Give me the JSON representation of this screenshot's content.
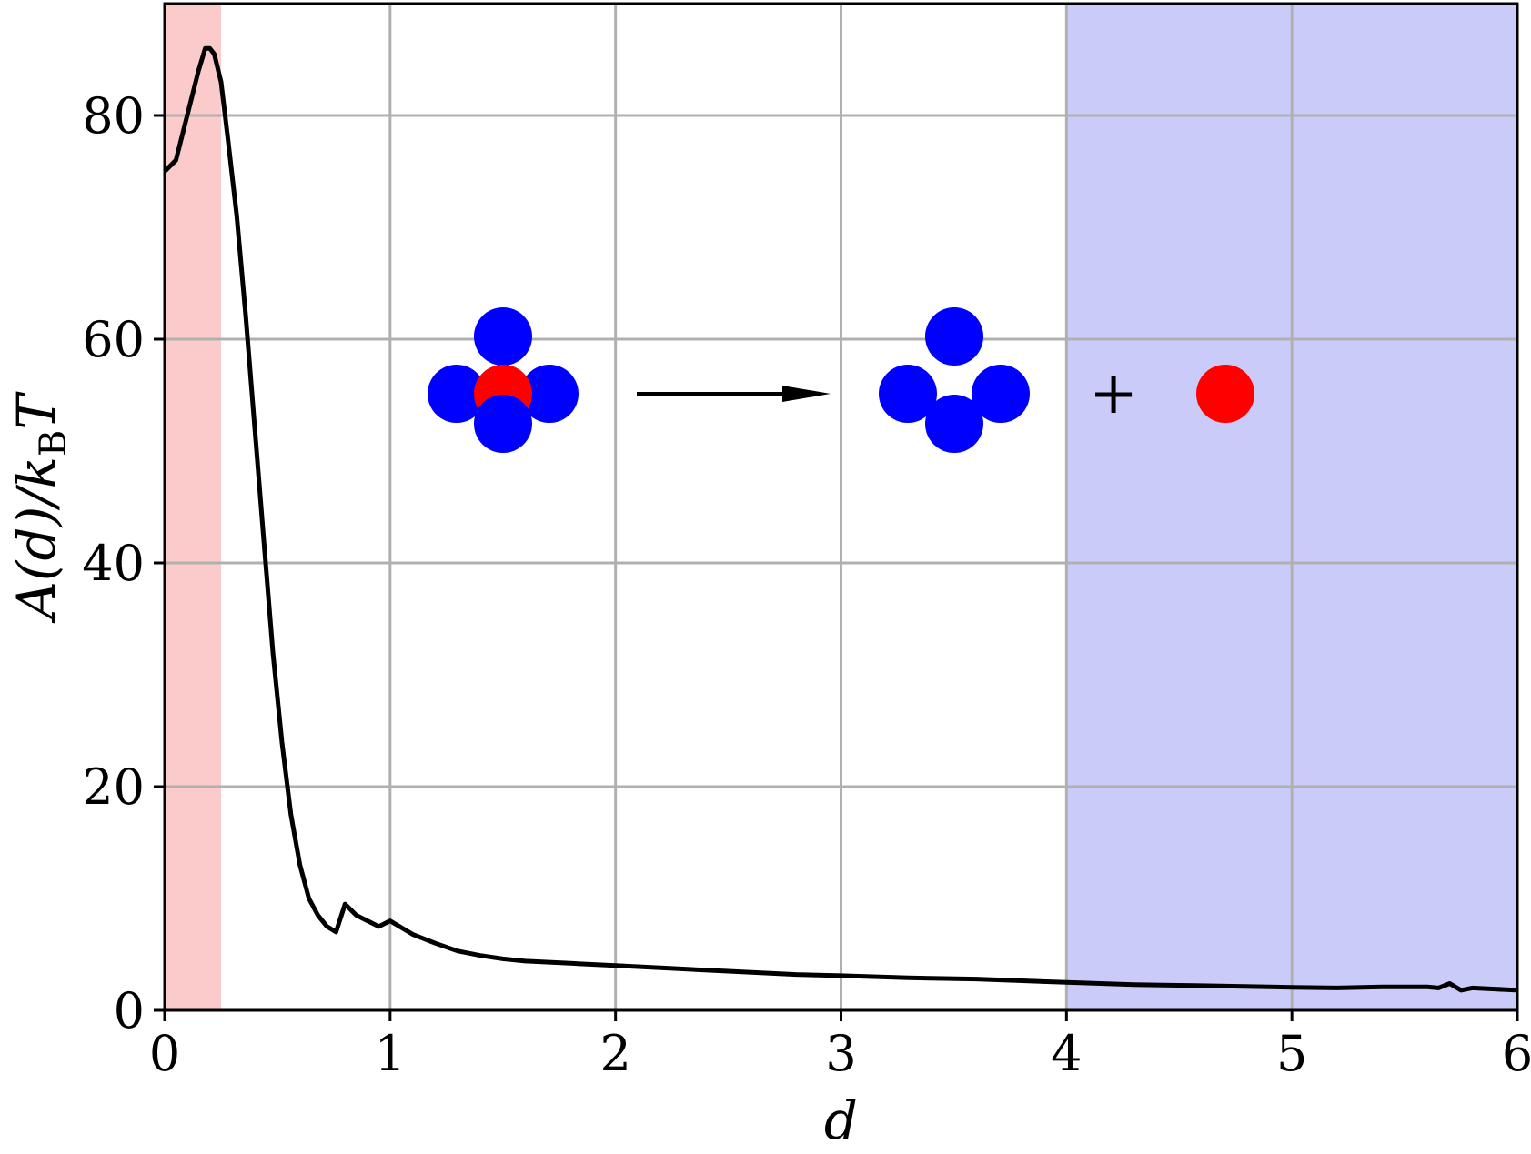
{
  "chart_data": {
    "type": "line",
    "xlabel": "d",
    "ylabel": "A(d)/kBT",
    "xlim": [
      0,
      6
    ],
    "ylim": [
      0,
      90
    ],
    "grid": true,
    "xticks": [
      "0",
      "1",
      "2",
      "3",
      "4",
      "5",
      "6"
    ],
    "yticks": [
      "0",
      "20",
      "40",
      "60",
      "80"
    ],
    "shaded_regions": [
      {
        "x_start": 0,
        "x_end": 0.25,
        "color": "#fbcaca"
      },
      {
        "x_start": 4,
        "x_end": 6,
        "color": "#cbcbfa"
      }
    ],
    "series": [
      {
        "color": "#000000",
        "x": [
          0.0,
          0.05,
          0.1,
          0.15,
          0.18,
          0.2,
          0.22,
          0.25,
          0.28,
          0.32,
          0.36,
          0.4,
          0.44,
          0.48,
          0.52,
          0.56,
          0.6,
          0.64,
          0.68,
          0.72,
          0.76,
          0.8,
          0.85,
          0.9,
          0.95,
          1.0,
          1.1,
          1.2,
          1.3,
          1.4,
          1.5,
          1.6,
          1.8,
          2.0,
          2.2,
          2.5,
          2.8,
          3.0,
          3.3,
          3.6,
          4.0,
          4.3,
          4.6,
          4.9,
          5.0,
          5.2,
          5.4,
          5.6,
          5.65,
          5.7,
          5.75,
          5.8,
          5.9,
          6.0
        ],
        "y": [
          75,
          76,
          80,
          84,
          86,
          86,
          85.5,
          83,
          78,
          71,
          62,
          52,
          42,
          32,
          24,
          17.5,
          13,
          10,
          8.5,
          7.5,
          7,
          9.5,
          8.5,
          8,
          7.5,
          8,
          6.8,
          6,
          5.3,
          4.9,
          4.6,
          4.4,
          4.2,
          4.0,
          3.8,
          3.5,
          3.2,
          3.1,
          2.9,
          2.8,
          2.5,
          2.3,
          2.2,
          2.1,
          2.05,
          2.0,
          2.1,
          2.1,
          2.0,
          2.4,
          1.8,
          2.0,
          1.9,
          1.8
        ]
      }
    ]
  },
  "inset": {
    "colors": {
      "cluster": "#0000ff",
      "center": "#ff0000",
      "arrow": "#000000"
    },
    "plus_text": "+"
  }
}
